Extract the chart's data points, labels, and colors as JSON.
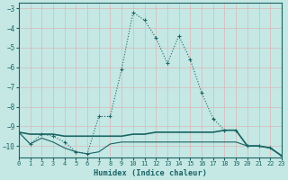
{
  "xlabel": "Humidex (Indice chaleur)",
  "bg_color": "#c5e8e5",
  "grid_color": "#b0d8d5",
  "line_color": "#1a6464",
  "xlim": [
    0,
    23
  ],
  "ylim": [
    -10.6,
    -2.7
  ],
  "yticks": [
    -3,
    -4,
    -5,
    -6,
    -7,
    -8,
    -9,
    -10
  ],
  "xticks": [
    0,
    1,
    2,
    3,
    4,
    5,
    6,
    7,
    8,
    9,
    10,
    11,
    12,
    13,
    14,
    15,
    16,
    17,
    18,
    19,
    20,
    21,
    22,
    23
  ],
  "curve_x": [
    0,
    1,
    2,
    3,
    4,
    5,
    6,
    7,
    8,
    9,
    10,
    11,
    12,
    13,
    14,
    15,
    16,
    17,
    18,
    19,
    20,
    21,
    22,
    23
  ],
  "curve_y": [
    -9.3,
    -9.9,
    -9.4,
    -9.5,
    -9.8,
    -10.3,
    -10.4,
    -8.5,
    -8.5,
    -6.1,
    -3.2,
    -3.6,
    -4.5,
    -5.8,
    -4.4,
    -5.6,
    -7.3,
    -8.6,
    -9.2,
    -9.2,
    -10.0,
    -10.0,
    -10.1,
    -10.5
  ],
  "flat1_x": [
    0,
    1,
    2,
    3,
    4,
    5,
    6,
    7,
    8,
    9,
    10,
    11,
    12,
    13,
    14,
    15,
    16,
    17,
    18,
    19,
    20,
    21,
    22,
    23
  ],
  "flat1_y": [
    -9.3,
    -9.4,
    -9.4,
    -9.4,
    -9.5,
    -9.5,
    -9.5,
    -9.5,
    -9.5,
    -9.5,
    -9.4,
    -9.4,
    -9.3,
    -9.3,
    -9.3,
    -9.3,
    -9.3,
    -9.3,
    -9.2,
    -9.2,
    -10.0,
    -10.0,
    -10.1,
    -10.5
  ],
  "flat2_x": [
    0,
    1,
    2,
    3,
    4,
    5,
    6,
    7,
    8,
    9,
    10,
    11,
    12,
    13,
    14,
    15,
    16,
    17,
    18,
    19,
    20,
    21,
    22,
    23
  ],
  "flat2_y": [
    -9.3,
    -9.9,
    -9.6,
    -9.8,
    -10.1,
    -10.3,
    -10.4,
    -10.3,
    -9.9,
    -9.8,
    -9.8,
    -9.8,
    -9.8,
    -9.8,
    -9.8,
    -9.8,
    -9.8,
    -9.8,
    -9.8,
    -9.8,
    -10.0,
    -10.0,
    -10.1,
    -10.5
  ]
}
